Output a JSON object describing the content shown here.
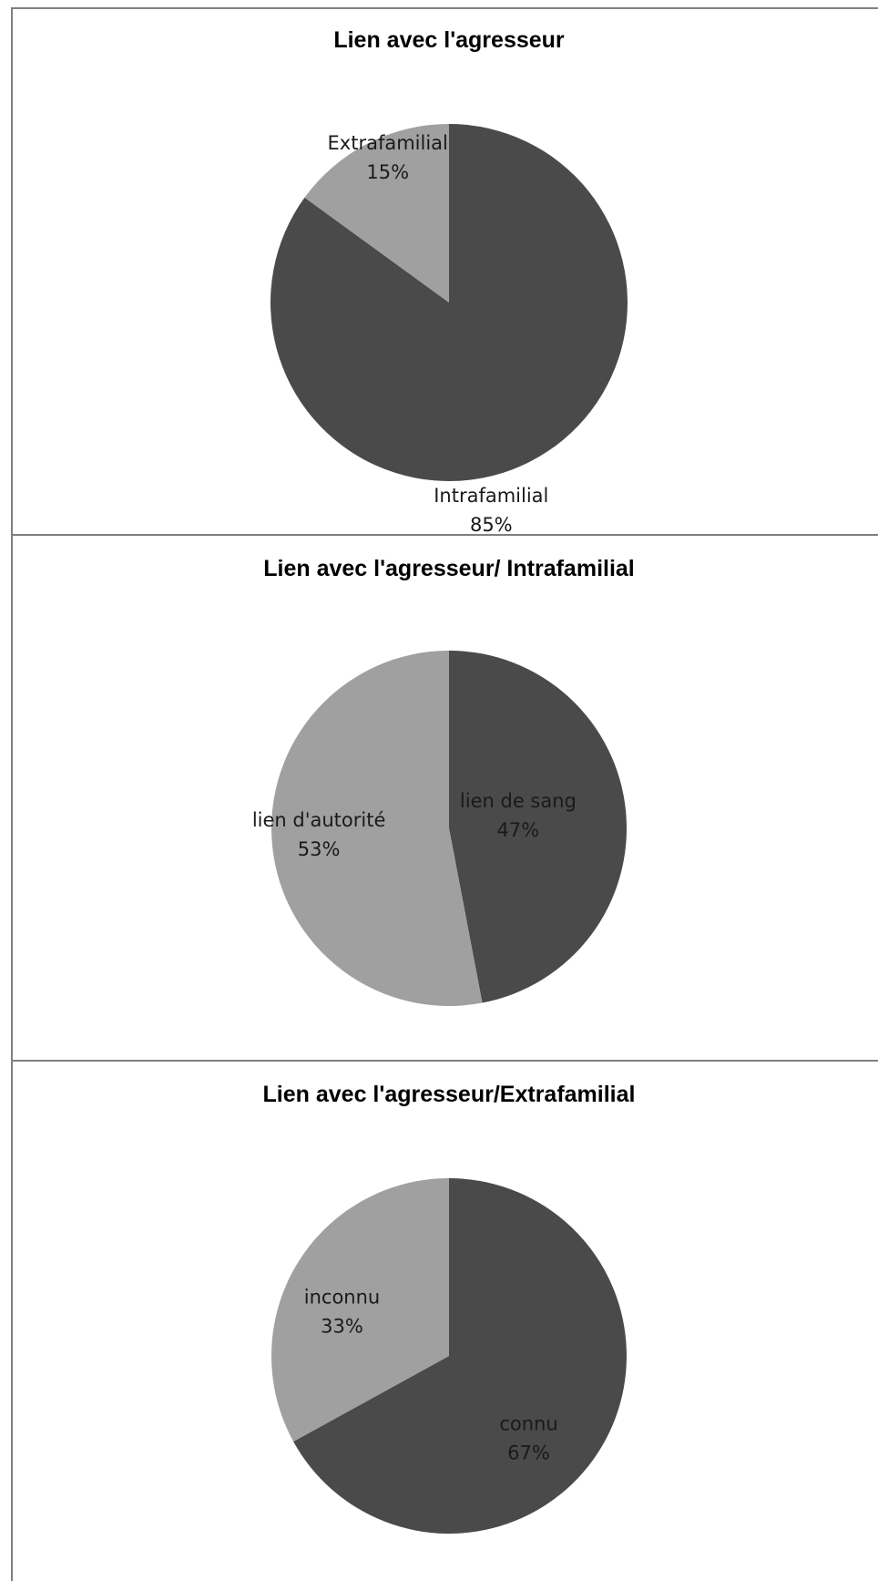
{
  "colors": {
    "dark_slice": "#4a4a4a",
    "light_slice": "#a0a0a0",
    "border": "#7f7f7f"
  },
  "chart_data": [
    {
      "type": "pie",
      "title": "Lien avec l'agresseur",
      "start_angle_deg": 0,
      "direction": "clockwise",
      "slices": [
        {
          "label": "Intrafamilial",
          "value": 85,
          "value_label": "85%",
          "color": "#4a4a4a"
        },
        {
          "label": "Extrafamilial",
          "value": 15,
          "value_label": "15%",
          "color": "#a0a0a0"
        }
      ]
    },
    {
      "type": "pie",
      "title": "Lien avec l'agresseur/ Intrafamilial",
      "start_angle_deg": 0,
      "direction": "clockwise",
      "slices": [
        {
          "label": "lien de sang",
          "value": 47,
          "value_label": "47%",
          "color": "#4a4a4a"
        },
        {
          "label": "lien d'autorité",
          "value": 53,
          "value_label": "53%",
          "color": "#a0a0a0"
        }
      ]
    },
    {
      "type": "pie",
      "title": "Lien avec l'agresseur/Extrafamilial",
      "start_angle_deg": 0,
      "direction": "clockwise",
      "slices": [
        {
          "label": "connu",
          "value": 67,
          "value_label": "67%",
          "color": "#4a4a4a"
        },
        {
          "label": "inconnu",
          "value": 33,
          "value_label": "33%",
          "color": "#a0a0a0"
        }
      ]
    }
  ]
}
